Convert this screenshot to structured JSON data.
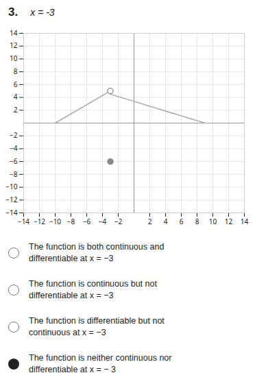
{
  "chart_data": {
    "type": "line",
    "title": "x = -3",
    "xlim": [
      -14,
      14
    ],
    "ylim": [
      -14,
      14
    ],
    "xticks": [
      -14,
      -12,
      -10,
      -8,
      -6,
      -4,
      -2,
      2,
      4,
      6,
      8,
      10,
      12,
      14
    ],
    "yticks": [
      -14,
      -12,
      -10,
      -8,
      -6,
      -4,
      -2,
      2,
      4,
      6,
      8,
      10,
      12,
      14
    ],
    "grid": true,
    "series": [
      {
        "type": "line",
        "color": "#aaaaaa",
        "x": [
          -10,
          -3
        ],
        "values": [
          0,
          5
        ]
      },
      {
        "type": "line",
        "color": "#aaaaaa",
        "x": [
          -3,
          9
        ],
        "values": [
          4.5,
          0
        ]
      },
      {
        "type": "scatter",
        "marker": "open",
        "color": "#888888",
        "x": [
          -3
        ],
        "values": [
          5
        ]
      },
      {
        "type": "scatter",
        "marker": "filled",
        "color": "#888888",
        "x": [
          -3
        ],
        "values": [
          -6
        ]
      }
    ],
    "annotations": [
      {
        "text": [
          "3."
        ]
      },
      {
        "text": [
          "The function is both continuous and",
          "differentiable at x = −3"
        ],
        "marker": "open"
      },
      {
        "text": [
          "The function is continuous but not",
          "differentiable at x = −3"
        ],
        "marker": "open"
      },
      {
        "text": [
          "The function is differentiable but not",
          "continuous at x = −3"
        ],
        "marker": "open"
      },
      {
        "text": [
          "The function is neither continuous nor",
          "differentiable at x = − 3"
        ],
        "marker": "filled"
      }
    ]
  }
}
